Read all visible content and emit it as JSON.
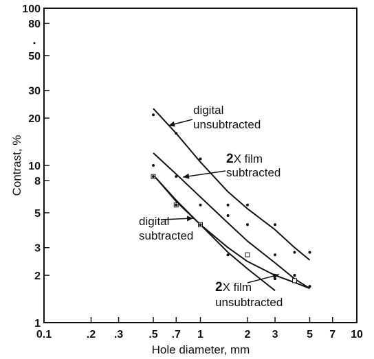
{
  "chart_data": {
    "type": "scatter",
    "x_scale": "log",
    "y_scale": "log",
    "xlim": [
      0.1,
      10
    ],
    "ylim": [
      1,
      100
    ],
    "xlabel": "Hole diameter, mm",
    "ylabel": "Contrast, %",
    "x_ticks": [
      {
        "value": 0.1,
        "label": "0.1"
      },
      {
        "value": 0.2,
        "label": ".2"
      },
      {
        "value": 0.3,
        "label": ".3"
      },
      {
        "value": 0.5,
        "label": ".5"
      },
      {
        "value": 0.7,
        "label": ".7"
      },
      {
        "value": 1,
        "label": "1"
      },
      {
        "value": 2,
        "label": "2"
      },
      {
        "value": 3,
        "label": "3"
      },
      {
        "value": 5,
        "label": "5"
      },
      {
        "value": 7,
        "label": "7"
      },
      {
        "value": 10,
        "label": "10"
      }
    ],
    "y_ticks": [
      {
        "value": 1,
        "label": "1"
      },
      {
        "value": 2,
        "label": "2"
      },
      {
        "value": 3,
        "label": "3"
      },
      {
        "value": 5,
        "label": "5"
      },
      {
        "value": 8,
        "label": "8"
      },
      {
        "value": 10,
        "label": "10"
      },
      {
        "value": 20,
        "label": "20"
      },
      {
        "value": 30,
        "label": "30"
      },
      {
        "value": 50,
        "label": "50"
      },
      {
        "value": 80,
        "label": "80"
      },
      {
        "value": 100,
        "label": "100"
      }
    ],
    "grid": false,
    "series": [
      {
        "name": "digital unsubtracted",
        "marker": "dot",
        "points": [
          [
            0.5,
            21
          ],
          [
            0.7,
            16
          ],
          [
            1,
            11
          ],
          [
            1.5,
            5.6
          ],
          [
            2,
            5.6
          ],
          [
            3,
            4.2
          ],
          [
            4,
            2.8
          ],
          [
            5,
            2.8
          ]
        ],
        "curve": [
          [
            0.5,
            23
          ],
          [
            0.7,
            16
          ],
          [
            1,
            10.5
          ],
          [
            1.5,
            6.8
          ],
          [
            2,
            5.3
          ],
          [
            3,
            3.9
          ],
          [
            4,
            3.0
          ],
          [
            5,
            2.5
          ]
        ]
      },
      {
        "name": "2X film subtracted",
        "marker": "dot",
        "points": [
          [
            0.5,
            10
          ],
          [
            0.7,
            8.5
          ],
          [
            1,
            5.6
          ],
          [
            1.5,
            4.8
          ],
          [
            2,
            4.2
          ],
          [
            3,
            2.7
          ],
          [
            4,
            2.0
          ],
          [
            5,
            1.7
          ]
        ],
        "curve": [
          [
            0.5,
            12
          ],
          [
            0.7,
            8.8
          ],
          [
            1,
            6.3
          ],
          [
            1.5,
            4.3
          ],
          [
            2,
            3.3
          ],
          [
            3,
            2.4
          ],
          [
            4,
            1.9
          ],
          [
            5,
            1.65
          ]
        ]
      },
      {
        "name": "digital subtracted",
        "marker": "open-square",
        "points": [
          [
            0.5,
            8.5
          ],
          [
            0.7,
            5.6
          ],
          [
            1,
            4.2
          ],
          [
            2,
            2.7
          ],
          [
            4,
            1.85
          ]
        ],
        "curve": [
          [
            0.5,
            8.7
          ],
          [
            0.7,
            6.0
          ],
          [
            1,
            4.2
          ],
          [
            1.5,
            3.0
          ],
          [
            2,
            2.45
          ],
          [
            3,
            2.0
          ],
          [
            4,
            1.8
          ],
          [
            5,
            1.65
          ]
        ]
      },
      {
        "name": "2X film unsubtracted",
        "marker": "dot",
        "points": [
          [
            0.5,
            8.5
          ],
          [
            0.7,
            5.6
          ],
          [
            1,
            4.2
          ],
          [
            1.5,
            2.7
          ],
          [
            3,
            1.9
          ],
          [
            4,
            2.0
          ],
          [
            5,
            1.7
          ]
        ],
        "curve": [
          [
            0.5,
            8.7
          ],
          [
            0.7,
            5.9
          ],
          [
            1,
            4.2
          ],
          [
            1.5,
            2.8
          ],
          [
            2,
            2.2
          ],
          [
            3,
            1.6
          ]
        ]
      }
    ],
    "annotations": [
      {
        "lines": [
          "digital",
          "unsubtracted"
        ],
        "bold_prefix": ""
      },
      {
        "lines": [
          "X film",
          "subtracted"
        ],
        "bold_prefix": "2"
      },
      {
        "lines": [
          "digital",
          "subtracted"
        ],
        "bold_prefix": ""
      },
      {
        "lines": [
          "X film",
          "unsubtracted"
        ],
        "bold_prefix": "2"
      }
    ],
    "stray_mark": {
      "x": 0.1,
      "y": 60
    }
  }
}
